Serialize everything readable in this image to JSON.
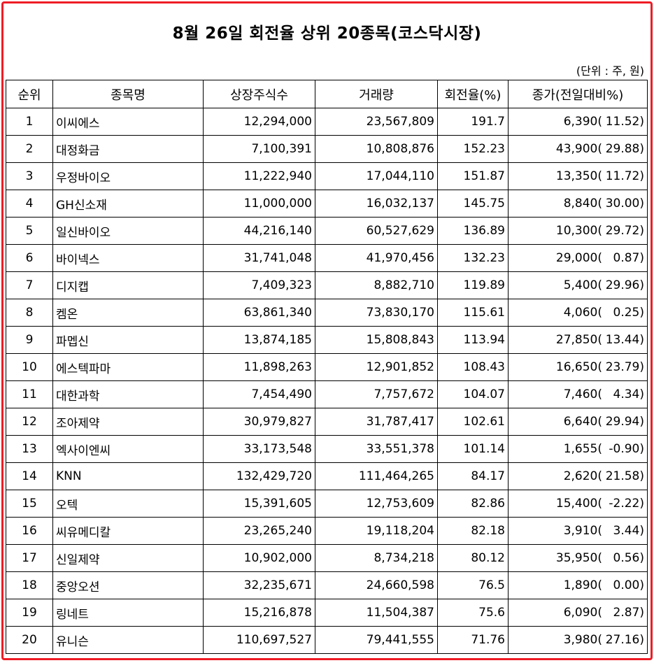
{
  "title": "8월 26일 회전율 상위 20종목(코스닥시장)",
  "unit_note": "(단위 : 주, 원)",
  "columns": [
    "순위",
    "종목명",
    "상장주식수",
    "거래량",
    "회전율(%)",
    "종가(전일대비%)"
  ],
  "rows": [
    {
      "rank": "1",
      "name": "이씨에스",
      "shares": "12,294,000",
      "volume": "23,567,809",
      "turnover": "191.7",
      "close": "6,390(",
      "change": "11.52)"
    },
    {
      "rank": "2",
      "name": "대정화금",
      "shares": "7,100,391",
      "volume": "10,808,876",
      "turnover": "152.23",
      "close": "43,900(",
      "change": "29.88)"
    },
    {
      "rank": "3",
      "name": "우정바이오",
      "shares": "11,222,940",
      "volume": "17,044,110",
      "turnover": "151.87",
      "close": "13,350(",
      "change": "11.72)"
    },
    {
      "rank": "4",
      "name": "GH신소재",
      "shares": "11,000,000",
      "volume": "16,032,137",
      "turnover": "145.75",
      "close": "8,840(",
      "change": "30.00)"
    },
    {
      "rank": "5",
      "name": "일신바이오",
      "shares": "44,216,140",
      "volume": "60,527,629",
      "turnover": "136.89",
      "close": "10,300(",
      "change": "29.72)"
    },
    {
      "rank": "6",
      "name": "바이넥스",
      "shares": "31,741,048",
      "volume": "41,970,456",
      "turnover": "132.23",
      "close": "29,000(",
      "change": "0.87)"
    },
    {
      "rank": "7",
      "name": "디지캡",
      "shares": "7,409,323",
      "volume": "8,882,710",
      "turnover": "119.89",
      "close": "5,400(",
      "change": "29.96)"
    },
    {
      "rank": "8",
      "name": "켐온",
      "shares": "63,861,340",
      "volume": "73,830,170",
      "turnover": "115.61",
      "close": "4,060(",
      "change": "0.25)"
    },
    {
      "rank": "9",
      "name": "파멥신",
      "shares": "13,874,185",
      "volume": "15,808,843",
      "turnover": "113.94",
      "close": "27,850(",
      "change": "13.44)"
    },
    {
      "rank": "10",
      "name": "에스텍파마",
      "shares": "11,898,263",
      "volume": "12,901,852",
      "turnover": "108.43",
      "close": "16,650(",
      "change": "23.79)"
    },
    {
      "rank": "11",
      "name": "대한과학",
      "shares": "7,454,490",
      "volume": "7,757,672",
      "turnover": "104.07",
      "close": "7,460(",
      "change": "4.34)"
    },
    {
      "rank": "12",
      "name": "조아제약",
      "shares": "30,979,827",
      "volume": "31,787,417",
      "turnover": "102.61",
      "close": "6,640(",
      "change": "29.94)"
    },
    {
      "rank": "13",
      "name": "엑사이엔씨",
      "shares": "33,173,548",
      "volume": "33,551,378",
      "turnover": "101.14",
      "close": "1,655(",
      "change": "-0.90)"
    },
    {
      "rank": "14",
      "name": "KNN",
      "shares": "132,429,720",
      "volume": "111,464,265",
      "turnover": "84.17",
      "close": "2,620(",
      "change": "21.58)"
    },
    {
      "rank": "15",
      "name": "오텍",
      "shares": "15,391,605",
      "volume": "12,753,609",
      "turnover": "82.86",
      "close": "15,400(",
      "change": "-2.22)"
    },
    {
      "rank": "16",
      "name": "씨유메디칼",
      "shares": "23,265,240",
      "volume": "19,118,204",
      "turnover": "82.18",
      "close": "3,910(",
      "change": "3.44)"
    },
    {
      "rank": "17",
      "name": "신일제약",
      "shares": "10,902,000",
      "volume": "8,734,218",
      "turnover": "80.12",
      "close": "35,950(",
      "change": "0.56)"
    },
    {
      "rank": "18",
      "name": "중앙오션",
      "shares": "32,235,671",
      "volume": "24,660,598",
      "turnover": "76.5",
      "close": "1,890(",
      "change": "0.00)"
    },
    {
      "rank": "19",
      "name": "링네트",
      "shares": "15,216,878",
      "volume": "11,504,387",
      "turnover": "75.6",
      "close": "6,090(",
      "change": "2.87)"
    },
    {
      "rank": "20",
      "name": "유니슨",
      "shares": "110,697,527",
      "volume": "79,441,555",
      "turnover": "71.76",
      "close": "3,980(",
      "change": "27.16)"
    }
  ],
  "colors": {
    "frame": "#ee1c25",
    "text": "#000000",
    "background": "#ffffff"
  }
}
